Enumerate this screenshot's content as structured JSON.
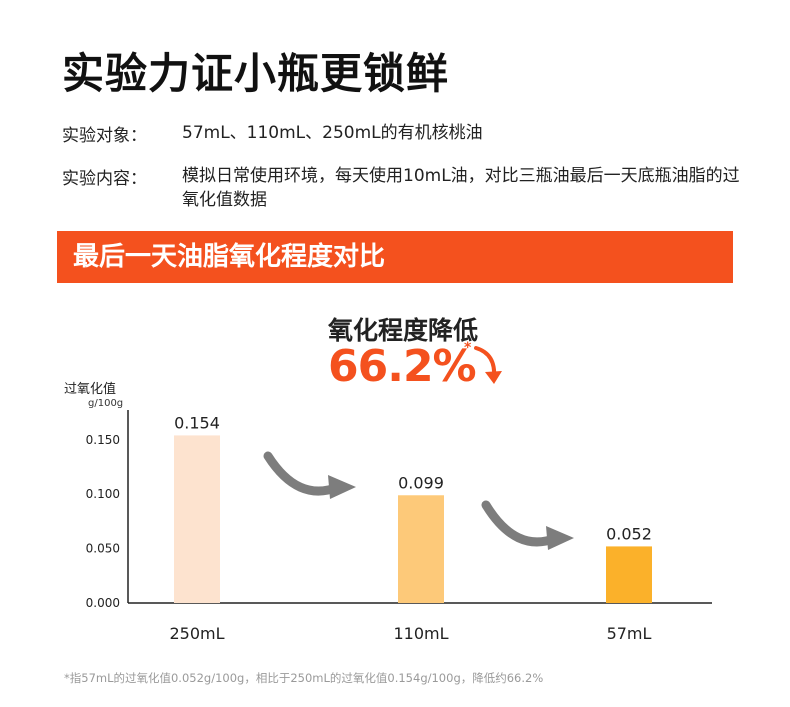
{
  "title": "实验力证小瓶更锁鲜",
  "info": {
    "subject_label": "实验对象：",
    "subject_value": "57mL、110mL、250mL的有机核桃油",
    "content_label": "实验内容：",
    "content_value": "模拟日常使用环境，每天使用10mL油，对比三瓶油最后一天底瓶油脂的过氧化值数据"
  },
  "banner": {
    "text": "最后一天油脂氧化程度对比",
    "color": "#f4511e"
  },
  "reduction": {
    "label": "氧化程度降低",
    "value": "66.2%",
    "mark": "*",
    "color": "#f4511e"
  },
  "chart_data": {
    "type": "bar",
    "ylabel": "过氧化值",
    "yunit": "g/100g",
    "categories": [
      "250mL",
      "110mL",
      "57mL"
    ],
    "values": [
      0.154,
      0.099,
      0.052
    ],
    "value_labels": [
      "0.154",
      "0.099",
      "0.052"
    ],
    "bar_colors": [
      "#fde3cf",
      "#fdc979",
      "#fbb12a"
    ],
    "yticks": [
      "0.000",
      "0.050",
      "0.100",
      "0.150"
    ],
    "ylim": [
      0,
      0.17
    ],
    "grid": false
  },
  "footnote": "*指57mL的过氧化值0.052g/100g，相比于250mL的过氧化值0.154g/100g，降低约66.2%"
}
